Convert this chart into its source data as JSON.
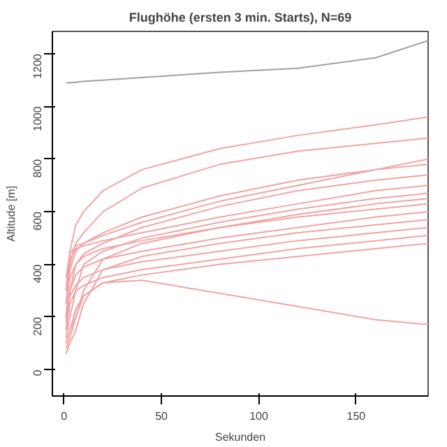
{
  "chart_data": {
    "type": "line",
    "title": "Flughöhe (ersten 3 min. Starts), N=69",
    "xlabel": "Sekunden",
    "ylabel": "Altitude [m]",
    "x": [
      1,
      3,
      6,
      10,
      20,
      40,
      80,
      120,
      160,
      187
    ],
    "xlim": [
      -6,
      187
    ],
    "xticks": [
      0,
      50,
      100,
      150
    ],
    "ylim": [
      -100,
      1285
    ],
    "yticks": [
      0,
      200,
      400,
      600,
      800,
      1000,
      1200
    ],
    "grid": false,
    "series": [
      {
        "color": "#a0a0a0",
        "values": [
          1090,
          1090,
          1092,
          1095,
          1100,
          1110,
          1130,
          1145,
          1185,
          1250
        ]
      },
      {
        "color": "#f4a3a3",
        "values": [
          100,
          150,
          230,
          280,
          330,
          340,
          290,
          240,
          190,
          171
        ]
      },
      {
        "color": "#f4a3a3",
        "values": [
          300,
          450,
          550,
          600,
          680,
          760,
          840,
          890,
          930,
          960
        ]
      },
      {
        "color": "#f4a3a3",
        "values": [
          250,
          400,
          480,
          520,
          600,
          690,
          780,
          830,
          860,
          880
        ]
      },
      {
        "color": "#f4a3a3",
        "values": [
          350,
          440,
          470,
          480,
          510,
          560,
          640,
          700,
          760,
          800
        ]
      },
      {
        "color": "#f4a3a3",
        "values": [
          200,
          380,
          450,
          480,
          520,
          580,
          660,
          720,
          760,
          780
        ]
      },
      {
        "color": "#f4a3a3",
        "values": [
          150,
          300,
          400,
          440,
          480,
          540,
          620,
          680,
          720,
          740
        ]
      },
      {
        "color": "#f4a3a3",
        "values": [
          300,
          420,
          460,
          470,
          490,
          520,
          580,
          630,
          680,
          700
        ]
      },
      {
        "color": "#f4a3a3",
        "values": [
          120,
          200,
          300,
          400,
          450,
          500,
          560,
          610,
          650,
          670
        ]
      },
      {
        "color": "#f4a3a3",
        "values": [
          100,
          150,
          200,
          300,
          420,
          480,
          540,
          590,
          630,
          650
        ]
      },
      {
        "color": "#f4a3a3",
        "values": [
          250,
          350,
          400,
          430,
          460,
          490,
          540,
          580,
          610,
          630
        ]
      },
      {
        "color": "#f4a3a3",
        "values": [
          180,
          300,
          360,
          390,
          420,
          450,
          500,
          540,
          580,
          600
        ]
      },
      {
        "color": "#f4a3a3",
        "values": [
          60,
          100,
          150,
          250,
          380,
          430,
          480,
          520,
          550,
          570
        ]
      },
      {
        "color": "#f4a3a3",
        "values": [
          200,
          280,
          320,
          350,
          380,
          410,
          450,
          490,
          520,
          540
        ]
      },
      {
        "color": "#f4a3a3",
        "values": [
          150,
          250,
          300,
          320,
          350,
          380,
          420,
          460,
          490,
          510
        ]
      },
      {
        "color": "#f4a3a3",
        "values": [
          80,
          120,
          200,
          280,
          330,
          360,
          400,
          430,
          460,
          480
        ]
      }
    ]
  }
}
